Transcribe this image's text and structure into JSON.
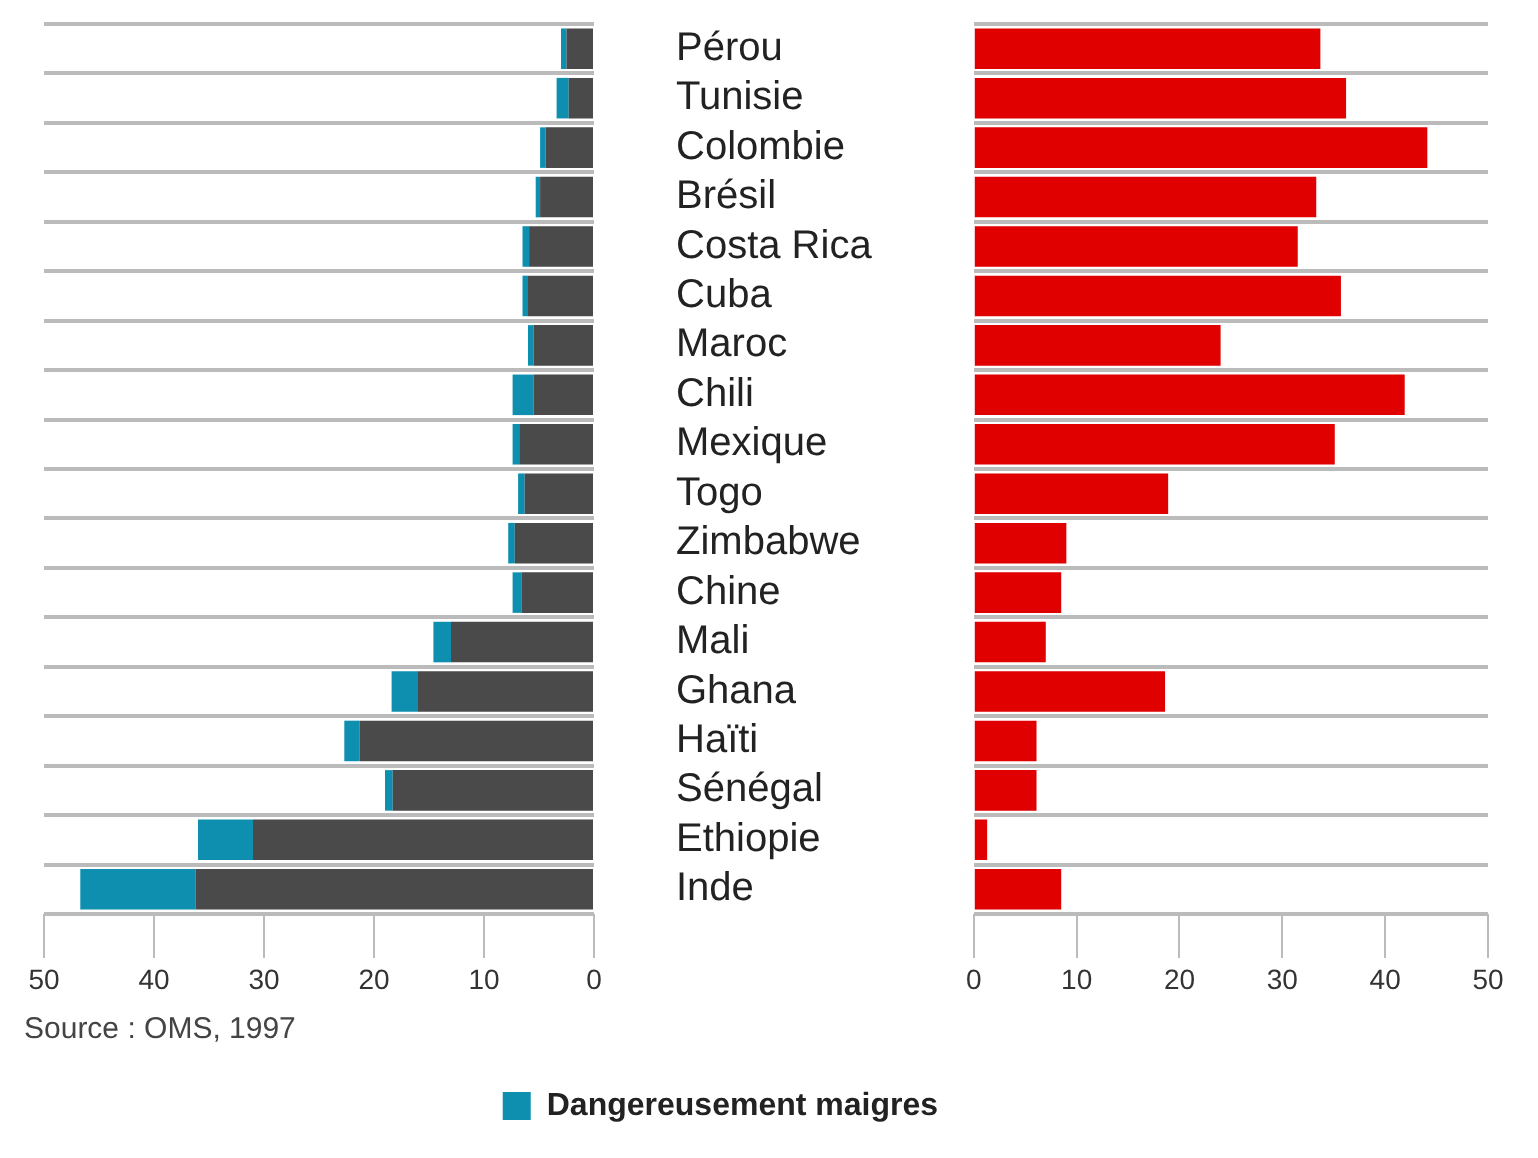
{
  "chart_data": [
    {
      "type": "bar",
      "orientation": "horizontal",
      "stacked": true,
      "categories": [
        "Pérou",
        "Tunisie",
        "Colombie",
        "Brésil",
        "Costa Rica",
        "Cuba",
        "Maroc",
        "Chili",
        "Mexique",
        "Togo",
        "Zimbabwe",
        "Chine",
        "Mali",
        "Ghana",
        "Haïti",
        "Sénégal",
        "Ethiopie",
        "Inde"
      ],
      "series": [
        {
          "color": "#4a4a4a",
          "values": [
            2.5,
            2.3,
            4.4,
            4.9,
            5.9,
            6.0,
            5.5,
            5.5,
            6.8,
            6.3,
            7.2,
            6.6,
            13.0,
            16.0,
            21.3,
            18.3,
            31.0,
            36.2
          ]
        },
        {
          "name": "Dangereusement maigres",
          "color": "#0f8fb0",
          "values": [
            0.5,
            1.1,
            0.5,
            0.4,
            0.6,
            0.5,
            0.5,
            1.9,
            0.6,
            0.6,
            0.6,
            0.8,
            1.6,
            2.4,
            1.4,
            0.7,
            5.0,
            10.5
          ]
        }
      ],
      "xlim": [
        50,
        0
      ],
      "xticks": [
        0,
        10,
        20,
        30,
        40,
        50
      ],
      "grid": "y",
      "legend": "bottom",
      "annotations": [
        "Source : OMS, 1997"
      ]
    },
    {
      "type": "bar",
      "orientation": "horizontal",
      "categories": [
        null,
        null,
        null,
        null,
        null,
        null,
        null,
        null,
        null,
        null,
        null,
        null,
        null,
        null,
        null,
        null,
        null,
        null
      ],
      "values": [
        33.7,
        36.2,
        44.1,
        33.3,
        31.5,
        35.7,
        24.0,
        41.9,
        35.1,
        18.9,
        9.0,
        8.5,
        7.0,
        18.6,
        6.1,
        6.1,
        1.3,
        8.5
      ],
      "color": "#e00000",
      "xlim": [
        0,
        50
      ],
      "xticks": [
        0,
        10,
        20,
        30,
        40,
        50
      ],
      "grid": "y",
      "tick_labels": "x"
    }
  ]
}
